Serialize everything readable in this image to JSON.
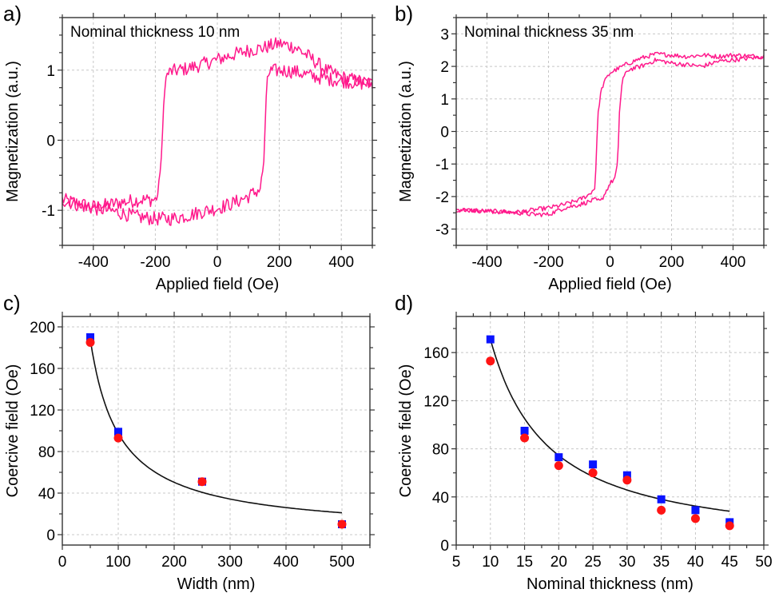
{
  "figure": {
    "colors": {
      "loop": "#ff1a8c",
      "square_marker": "#0a14ff",
      "circle_marker": "#ff1414",
      "fit": "#111111"
    }
  },
  "chart_data": [
    {
      "id": "a",
      "panel_label": "a)",
      "type": "line",
      "title": "",
      "annotation": "Nominal thickness 10 nm",
      "xlabel": "Applied field (Oe)",
      "ylabel": "Magnetization (a.u.)",
      "xlim": [
        -500,
        500
      ],
      "ylim": [
        -1.5,
        1.75
      ],
      "xticks": [
        -400,
        -200,
        0,
        200,
        400
      ],
      "xtick_labels": [
        "-400",
        "-200",
        "0",
        "200",
        "400"
      ],
      "yticks": [
        -1,
        0,
        1
      ],
      "ytick_labels": [
        "-1",
        "0",
        "1"
      ],
      "x_minor_step": 100,
      "y_minor_step": 0.25,
      "grid": true,
      "coercive_field_Oe": [
        -175,
        150
      ],
      "series": [
        {
          "name": "descending branch",
          "noise": 0.1,
          "x": [
            -500,
            -450,
            -400,
            -350,
            -300,
            -250,
            -200,
            -190,
            -180,
            -170,
            -160,
            -150,
            -100,
            -50,
            0,
            50,
            100,
            150,
            200,
            250,
            300,
            350,
            400,
            450,
            500
          ],
          "y": [
            -0.85,
            -0.9,
            -0.95,
            -0.92,
            -0.88,
            -0.85,
            -0.85,
            -0.75,
            -0.2,
            0.8,
            0.95,
            0.98,
            1.02,
            1.08,
            1.15,
            1.22,
            1.28,
            1.32,
            1.38,
            1.33,
            1.18,
            1.0,
            0.9,
            0.85,
            0.8
          ]
        },
        {
          "name": "ascending branch",
          "noise": 0.1,
          "x": [
            -500,
            -450,
            -400,
            -350,
            -300,
            -250,
            -200,
            -150,
            -100,
            -50,
            0,
            50,
            100,
            130,
            140,
            150,
            160,
            170,
            200,
            250,
            300,
            350,
            400,
            450,
            500
          ],
          "y": [
            -0.85,
            -0.92,
            -0.97,
            -1.0,
            -1.05,
            -1.1,
            -1.12,
            -1.12,
            -1.08,
            -1.02,
            -0.97,
            -0.9,
            -0.8,
            -0.72,
            -0.68,
            -0.3,
            0.9,
            0.98,
            1.0,
            0.98,
            0.92,
            0.88,
            0.85,
            0.82,
            0.8
          ]
        }
      ]
    },
    {
      "id": "b",
      "panel_label": "b)",
      "type": "line",
      "title": "",
      "annotation": "Nominal thickness 35 nm",
      "xlabel": "Applied field (Oe)",
      "ylabel": "Magnetization (a.u.)",
      "xlim": [
        -500,
        500
      ],
      "ylim": [
        -3.5,
        3.5
      ],
      "xticks": [
        -400,
        -200,
        0,
        200,
        400
      ],
      "xtick_labels": [
        "-400",
        "-200",
        "0",
        "200",
        "400"
      ],
      "yticks": [
        -3,
        -2,
        -1,
        0,
        1,
        2,
        3
      ],
      "ytick_labels": [
        "-3",
        "-2",
        "-1",
        "0",
        "1",
        "2",
        "3"
      ],
      "x_minor_step": 100,
      "y_minor_step": 0.5,
      "grid": true,
      "coercive_field_Oe": [
        -40,
        30
      ],
      "series": [
        {
          "name": "descending branch",
          "noise": 0.07,
          "x": [
            -500,
            -400,
            -300,
            -200,
            -150,
            -100,
            -70,
            -50,
            -45,
            -40,
            -30,
            -20,
            0,
            20,
            50,
            100,
            150,
            200,
            250,
            300,
            350,
            400,
            450,
            500
          ],
          "y": [
            -2.4,
            -2.45,
            -2.48,
            -2.35,
            -2.25,
            -2.1,
            -1.95,
            -1.75,
            -1.0,
            0.5,
            1.2,
            1.5,
            1.8,
            1.9,
            2.05,
            2.25,
            2.38,
            2.35,
            2.3,
            2.35,
            2.3,
            2.35,
            2.32,
            2.3
          ]
        },
        {
          "name": "ascending branch",
          "noise": 0.07,
          "x": [
            -500,
            -400,
            -300,
            -250,
            -200,
            -150,
            -100,
            -50,
            -30,
            0,
            15,
            25,
            30,
            40,
            60,
            100,
            150,
            200,
            250,
            300,
            350,
            400,
            450,
            500
          ],
          "y": [
            -2.4,
            -2.45,
            -2.5,
            -2.55,
            -2.55,
            -2.35,
            -2.25,
            -2.1,
            -2.15,
            -1.6,
            -1.45,
            -1.0,
            0.5,
            1.6,
            1.9,
            2.0,
            2.2,
            2.1,
            2.05,
            2.0,
            2.15,
            2.2,
            2.25,
            2.3
          ]
        }
      ]
    },
    {
      "id": "c",
      "panel_label": "c)",
      "type": "scatter",
      "title": "",
      "xlabel": "Width (nm)",
      "ylabel": "Coercive field (Oe)",
      "xlim": [
        0,
        550
      ],
      "ylim": [
        -10,
        210
      ],
      "xticks": [
        0,
        100,
        200,
        300,
        400,
        500
      ],
      "xtick_labels": [
        "0",
        "100",
        "200",
        "300",
        "400",
        "500"
      ],
      "yticks": [
        0,
        40,
        80,
        120,
        160,
        200
      ],
      "ytick_labels": [
        "0",
        "40",
        "80",
        "120",
        "160",
        "200"
      ],
      "x_minor_step": 50,
      "y_minor_step": 20,
      "grid": true,
      "series": [
        {
          "name": "squares",
          "marker": "square",
          "x": [
            50,
            100,
            250,
            500
          ],
          "y": [
            190,
            99,
            51,
            10
          ]
        },
        {
          "name": "circles",
          "marker": "circle",
          "x": [
            50,
            100,
            250,
            500
          ],
          "y": [
            185,
            93,
            51,
            10
          ]
        }
      ],
      "fit": {
        "model": "power-law",
        "x0": 50,
        "y0": 188,
        "exponent": -0.95,
        "xrange": [
          50,
          500
        ]
      }
    },
    {
      "id": "d",
      "panel_label": "d)",
      "type": "scatter",
      "title": "",
      "xlabel": "Nominal thickness (nm)",
      "ylabel": "Coercive field (Oe)",
      "xlim": [
        5,
        50
      ],
      "ylim": [
        0,
        190
      ],
      "xticks": [
        5,
        10,
        15,
        20,
        25,
        30,
        35,
        40,
        45,
        50
      ],
      "xtick_labels": [
        "5",
        "10",
        "15",
        "20",
        "25",
        "30",
        "35",
        "40",
        "45",
        "50"
      ],
      "yticks": [
        0,
        40,
        80,
        120,
        160
      ],
      "ytick_labels": [
        "0",
        "40",
        "80",
        "120",
        "160"
      ],
      "x_minor_step": 2.5,
      "y_minor_step": 20,
      "grid": true,
      "series": [
        {
          "name": "squares",
          "marker": "square",
          "x": [
            10,
            15,
            20,
            25,
            30,
            35,
            40,
            45
          ],
          "y": [
            171,
            95,
            73,
            67,
            58,
            38,
            29,
            19
          ]
        },
        {
          "name": "circles",
          "marker": "circle",
          "x": [
            10,
            15,
            20,
            25,
            30,
            35,
            40,
            45
          ],
          "y": [
            153,
            89,
            66,
            60,
            54,
            29,
            22,
            16
          ]
        }
      ],
      "fit": {
        "model": "power-law",
        "x0": 10,
        "y0": 171,
        "exponent": -1.2,
        "xrange": [
          10,
          45
        ]
      }
    }
  ]
}
